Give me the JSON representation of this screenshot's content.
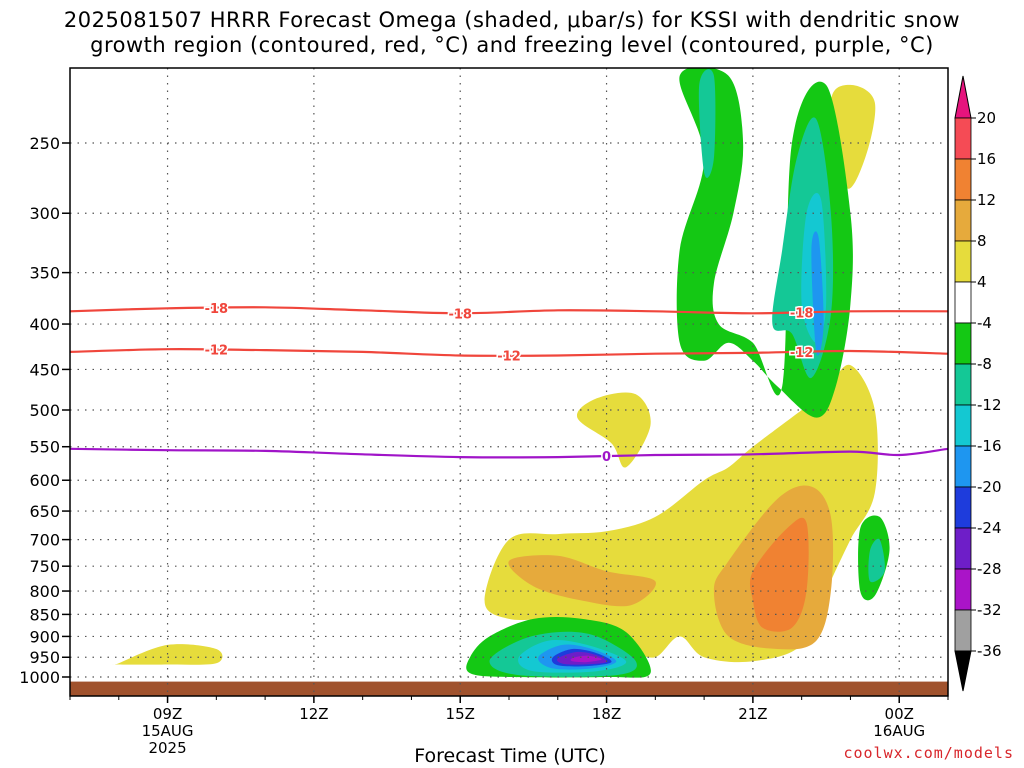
{
  "title": {
    "line1": "2025081507 HRRR Forecast Omega (shaded, μbar/s) for KSSI with dendritic snow",
    "line2": "growth region (contoured, red, °C) and freezing level (contoured, purple, °C)"
  },
  "xlabel": "Forecast Time (UTC)",
  "credit": "coolwx.com/models",
  "chart_data": {
    "type": "contour",
    "y_axis": {
      "scale": "log-pressure",
      "unit": "mb",
      "ticks": [
        250,
        300,
        350,
        400,
        450,
        500,
        550,
        600,
        650,
        700,
        750,
        800,
        850,
        900,
        950,
        1000
      ],
      "range": [
        1000,
        200
      ]
    },
    "x_axis": {
      "ticks": [
        {
          "label": "09Z",
          "sub1": "15AUG",
          "sub2": "2025",
          "hour": 9
        },
        {
          "label": "12Z",
          "sub1": "",
          "sub2": "",
          "hour": 12
        },
        {
          "label": "15Z",
          "sub1": "",
          "sub2": "",
          "hour": 15
        },
        {
          "label": "18Z",
          "sub1": "",
          "sub2": "",
          "hour": 18
        },
        {
          "label": "21Z",
          "sub1": "",
          "sub2": "",
          "hour": 21
        },
        {
          "label": "00Z",
          "sub1": "16AUG",
          "sub2": "",
          "hour": 24
        }
      ],
      "range_hours": [
        7,
        25
      ]
    },
    "grid": true,
    "colorbar": {
      "labels": [
        "20",
        "16",
        "12",
        "8",
        "4",
        "-4",
        "-8",
        "-12",
        "-16",
        "-20",
        "-24",
        "-28",
        "-32",
        "-36"
      ],
      "bands": [
        {
          "from": 16,
          "to": 20,
          "color": "#f54b55"
        },
        {
          "from": 12,
          "to": 16,
          "color": "#f08232"
        },
        {
          "from": 8,
          "to": 12,
          "color": "#e6aa3c"
        },
        {
          "from": 4,
          "to": 8,
          "color": "#e6dc3c"
        },
        {
          "from": -4,
          "to": 4,
          "color": "#ffffff"
        },
        {
          "from": -8,
          "to": -4,
          "color": "#14c814"
        },
        {
          "from": -12,
          "to": -8,
          "color": "#14c896"
        },
        {
          "from": -16,
          "to": -12,
          "color": "#14c8d2"
        },
        {
          "from": -20,
          "to": -16,
          "color": "#1e96f0"
        },
        {
          "from": -24,
          "to": -20,
          "color": "#1e3cdc"
        },
        {
          "from": -28,
          "to": -24,
          "color": "#6e1ec8"
        },
        {
          "from": -32,
          "to": -28,
          "color": "#aa14c8"
        },
        {
          "from": -36,
          "to": -32,
          "color": "#a0a0a0"
        }
      ],
      "top_arrow_color": "#e6147d",
      "bottom_arrow_color": "#000000"
    },
    "contours": {
      "dgz_color": "#f0463c",
      "freezing_color": "#a014c8",
      "lines": [
        {
          "label": "-18",
          "kind": "dgz",
          "points": [
            [
              7,
              387
            ],
            [
              9,
              384
            ],
            [
              11,
              383
            ],
            [
              13,
              386
            ],
            [
              15,
              389
            ],
            [
              17,
              386
            ],
            [
              19,
              387
            ],
            [
              21,
              389
            ],
            [
              23,
              387
            ],
            [
              25,
              387
            ]
          ]
        },
        {
          "label": "-12",
          "kind": "dgz",
          "points": [
            [
              7,
              430
            ],
            [
              9,
              427
            ],
            [
              11,
              428
            ],
            [
              13,
              430
            ],
            [
              15,
              434
            ],
            [
              17,
              434
            ],
            [
              19,
              432
            ],
            [
              21,
              431
            ],
            [
              23,
              429
            ],
            [
              25,
              432
            ]
          ]
        },
        {
          "label": "0",
          "kind": "freezing",
          "points": [
            [
              7,
              553
            ],
            [
              9,
              555
            ],
            [
              11,
              556
            ],
            [
              13,
              561
            ],
            [
              15,
              565
            ],
            [
              17,
              565
            ],
            [
              19,
              562
            ],
            [
              21,
              561
            ],
            [
              23,
              557
            ],
            [
              24,
              562
            ],
            [
              25,
              553
            ]
          ]
        }
      ],
      "label_hours": {
        "-18": [
          10,
          15,
          22
        ],
        "-12": [
          10,
          16,
          22
        ],
        "0": [
          18
        ]
      }
    },
    "shaded_regions": [
      {
        "value_band": "4 to 8",
        "color": "#e6dc3c",
        "points": [
          [
            8,
            965
          ],
          [
            9,
            920
          ],
          [
            10,
            930
          ],
          [
            10,
            965
          ],
          [
            9,
            968
          ],
          [
            8,
            968
          ]
        ]
      },
      {
        "value_band": "4 to 8",
        "color": "#e6dc3c",
        "points": [
          [
            15.5,
            820
          ],
          [
            16,
            700
          ],
          [
            17,
            690
          ],
          [
            18,
            685
          ],
          [
            19,
            660
          ],
          [
            20,
            600
          ],
          [
            20.5,
            580
          ],
          [
            21,
            550
          ],
          [
            22,
            500
          ],
          [
            22.5,
            475
          ],
          [
            23,
            445
          ],
          [
            23.5,
            500
          ],
          [
            23.5,
            620
          ],
          [
            23,
            700
          ],
          [
            22.5,
            800
          ],
          [
            22,
            920
          ],
          [
            21,
            960
          ],
          [
            20,
            950
          ],
          [
            19.5,
            900
          ],
          [
            19,
            950
          ],
          [
            18.5,
            930
          ],
          [
            18,
            880
          ],
          [
            17,
            860
          ],
          [
            16,
            860
          ]
        ]
      },
      {
        "value_band": "4 to 8",
        "color": "#e6dc3c",
        "points": [
          [
            17.4,
            510
          ],
          [
            17.8,
            485
          ],
          [
            18.6,
            480
          ],
          [
            18.9,
            520
          ],
          [
            18.4,
            580
          ],
          [
            18.1,
            545
          ]
        ]
      },
      {
        "value_band": "4 to 8",
        "color": "#e6dc3c",
        "points": [
          [
            22.6,
            225
          ],
          [
            23,
            215
          ],
          [
            23.5,
            225
          ],
          [
            23.3,
            260
          ],
          [
            22.9,
            280
          ]
        ]
      },
      {
        "value_band": "8 to 12",
        "color": "#e6aa3c",
        "points": [
          [
            16,
            740
          ],
          [
            17,
            730
          ],
          [
            18,
            760
          ],
          [
            19,
            780
          ],
          [
            18.5,
            830
          ],
          [
            17.5,
            820
          ],
          [
            16.5,
            790
          ]
        ]
      },
      {
        "value_band": "8 to 12",
        "color": "#e6aa3c",
        "points": [
          [
            20.5,
            740
          ],
          [
            21.5,
            630
          ],
          [
            22.2,
            610
          ],
          [
            22.6,
            660
          ],
          [
            22.6,
            800
          ],
          [
            22.3,
            910
          ],
          [
            21.5,
            930
          ],
          [
            20.5,
            900
          ],
          [
            20.2,
            800
          ]
        ]
      },
      {
        "value_band": "12 to 16",
        "color": "#f08232",
        "points": [
          [
            21,
            760
          ],
          [
            21.7,
            680
          ],
          [
            22.1,
            670
          ],
          [
            22.1,
            800
          ],
          [
            21.8,
            880
          ],
          [
            21.2,
            880
          ],
          [
            21,
            820
          ]
        ]
      },
      {
        "value_band": "-8 to -4",
        "color": "#14c814",
        "points": [
          [
            19.5,
            210
          ],
          [
            20.5,
            210
          ],
          [
            20.8,
            250
          ],
          [
            20.6,
            300
          ],
          [
            20.2,
            360
          ],
          [
            20.3,
            400
          ],
          [
            21,
            420
          ],
          [
            21.6,
            470
          ],
          [
            21.8,
            250
          ],
          [
            22.5,
            215
          ],
          [
            23,
            300
          ],
          [
            23,
            380
          ],
          [
            22.7,
            470
          ],
          [
            22.3,
            510
          ],
          [
            21.5,
            470
          ],
          [
            21,
            440
          ],
          [
            20.5,
            420
          ],
          [
            20,
            440
          ],
          [
            19.5,
            420
          ],
          [
            19.5,
            330
          ],
          [
            20,
            260
          ]
        ]
      },
      {
        "value_band": "-8 to -4",
        "color": "#14c814",
        "points": [
          [
            23.2,
            680
          ],
          [
            23.6,
            660
          ],
          [
            23.8,
            720
          ],
          [
            23.5,
            810
          ],
          [
            23.2,
            800
          ]
        ]
      },
      {
        "value_band": "-8 to -4",
        "color": "#14c814",
        "points": [
          [
            15.2,
            950
          ],
          [
            15.6,
            900
          ],
          [
            16.5,
            860
          ],
          [
            17.5,
            860
          ],
          [
            18.4,
            890
          ],
          [
            18.9,
            990
          ],
          [
            18,
            1000
          ],
          [
            16,
            1000
          ],
          [
            15.2,
            990
          ]
        ]
      },
      {
        "value_band": "-12 to -8",
        "color": "#14c896",
        "points": [
          [
            19.9,
            215
          ],
          [
            20.2,
            210
          ],
          [
            20.2,
            260
          ],
          [
            20.0,
            270
          ]
        ]
      },
      {
        "value_band": "-12 to -8",
        "color": "#14c896",
        "points": [
          [
            21.9,
            260
          ],
          [
            22.3,
            235
          ],
          [
            22.6,
            300
          ],
          [
            22.6,
            390
          ],
          [
            22.2,
            460
          ],
          [
            21.8,
            410
          ],
          [
            21.4,
            400
          ],
          [
            21.6,
            330
          ]
        ]
      },
      {
        "value_band": "-12 to -8",
        "color": "#14c896",
        "points": [
          [
            23.4,
            720
          ],
          [
            23.6,
            700
          ],
          [
            23.7,
            760
          ],
          [
            23.4,
            780
          ]
        ]
      },
      {
        "value_band": "-12 to -8",
        "color": "#14c896",
        "points": [
          [
            15.6,
            960
          ],
          [
            16.2,
            910
          ],
          [
            17,
            890
          ],
          [
            17.8,
            900
          ],
          [
            18.6,
            960
          ],
          [
            18.2,
            995
          ],
          [
            16.2,
            995
          ]
        ]
      },
      {
        "value_band": "-16 to -12",
        "color": "#14c8d2",
        "points": [
          [
            22.1,
            300
          ],
          [
            22.4,
            290
          ],
          [
            22.5,
            380
          ],
          [
            22.3,
            420
          ],
          [
            22.0,
            380
          ]
        ]
      },
      {
        "value_band": "-16 to -12",
        "color": "#14c8d2",
        "points": [
          [
            16.2,
            950
          ],
          [
            16.8,
            910
          ],
          [
            17.6,
            920
          ],
          [
            18.4,
            960
          ],
          [
            17.8,
            985
          ],
          [
            16.5,
            985
          ]
        ]
      },
      {
        "value_band": "-20 to -16",
        "color": "#1e96f0",
        "points": [
          [
            22.2,
            330
          ],
          [
            22.35,
            320
          ],
          [
            22.45,
            400
          ],
          [
            22.3,
            430
          ]
        ]
      },
      {
        "value_band": "-20 to -16",
        "color": "#1e96f0",
        "points": [
          [
            16.6,
            950
          ],
          [
            17.1,
            920
          ],
          [
            17.7,
            930
          ],
          [
            18.2,
            960
          ],
          [
            17.7,
            978
          ],
          [
            16.9,
            978
          ]
        ]
      },
      {
        "value_band": "-24 to -20",
        "color": "#1e3cdc",
        "points": [
          [
            16.9,
            950
          ],
          [
            17.3,
            930
          ],
          [
            17.8,
            940
          ],
          [
            18.1,
            962
          ],
          [
            17.6,
            972
          ],
          [
            17.0,
            970
          ]
        ]
      },
      {
        "value_band": "-28 to -24",
        "color": "#6e1ec8",
        "points": [
          [
            17.0,
            953
          ],
          [
            17.4,
            937
          ],
          [
            17.8,
            945
          ],
          [
            18.0,
            962
          ],
          [
            17.5,
            968
          ],
          [
            17.1,
            966
          ]
        ]
      },
      {
        "value_band": "-32 to -28",
        "color": "#aa14c8",
        "points": [
          [
            17.3,
            952
          ],
          [
            17.6,
            946
          ],
          [
            17.9,
            955
          ],
          [
            17.6,
            962
          ],
          [
            17.3,
            960
          ]
        ]
      }
    ],
    "terrain": {
      "color": "#a0522d",
      "pressure_mb": 1012
    }
  }
}
